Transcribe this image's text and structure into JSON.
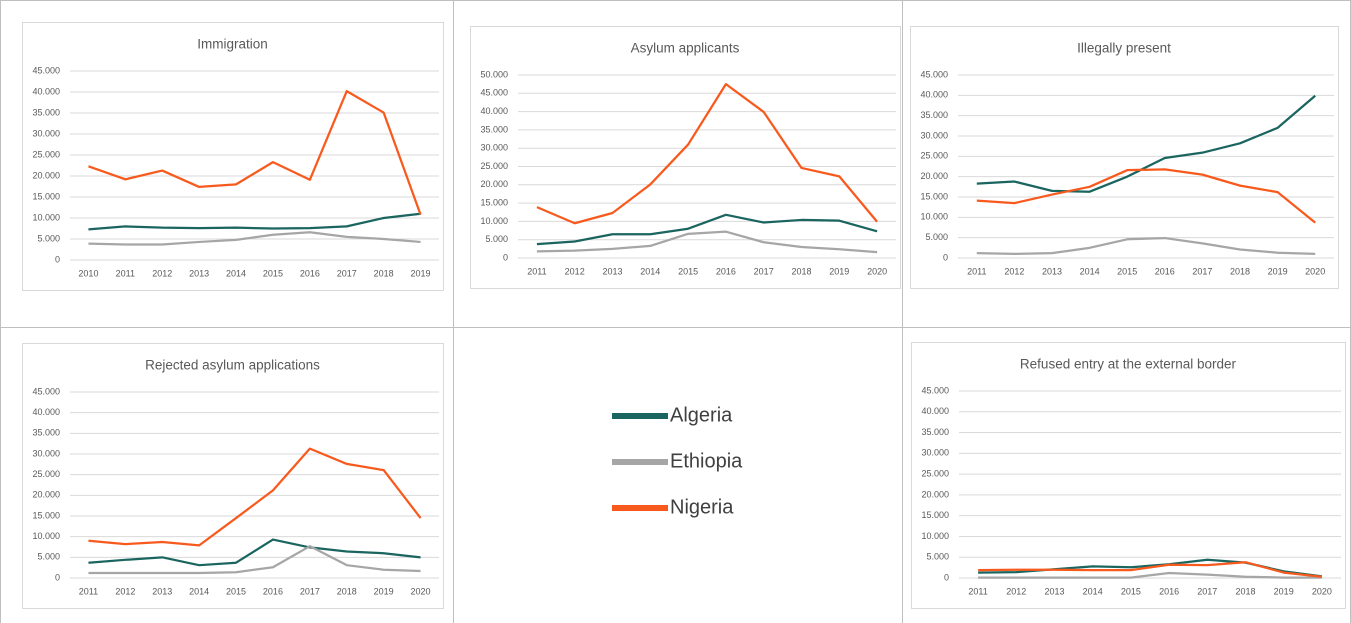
{
  "chart_data": [
    {
      "type": "line",
      "title": "Immigration",
      "categories": [
        "2010",
        "2011",
        "2012",
        "2013",
        "2014",
        "2015",
        "2016",
        "2017",
        "2018",
        "2019"
      ],
      "series": [
        {
          "name": "Algeria",
          "color": "#1a655f",
          "values": [
            7300,
            8000,
            7700,
            7600,
            7700,
            7500,
            7600,
            8000,
            10000,
            11000
          ]
        },
        {
          "name": "Ethiopia",
          "color": "#a6a6a6",
          "values": [
            3900,
            3700,
            3700,
            4300,
            4800,
            6000,
            6600,
            5500,
            5000,
            4300
          ]
        },
        {
          "name": "Nigeria",
          "color": "#f85a1e",
          "values": [
            22300,
            19200,
            21300,
            17400,
            18000,
            23300,
            19100,
            40200,
            35100,
            10800
          ]
        }
      ],
      "ylim": [
        0,
        45000
      ],
      "yticks": [
        0,
        {
          "value": 5000,
          "label": "5.000"
        },
        {
          "value": 10000,
          "label": "10.000"
        },
        {
          "value": 15000,
          "label": "15.000"
        },
        {
          "value": 20000,
          "label": "20.000"
        },
        {
          "value": 25000,
          "label": "25.000"
        },
        {
          "value": 30000,
          "label": "30.000"
        },
        {
          "value": 35000,
          "label": "35.000"
        },
        {
          "value": 40000,
          "label": "40.000"
        },
        {
          "value": 45000,
          "label": "45.000"
        }
      ],
      "grid": true
    },
    {
      "type": "line",
      "title": "Asylum applicants",
      "categories": [
        "2011",
        "2012",
        "2013",
        "2014",
        "2015",
        "2016",
        "2017",
        "2018",
        "2019",
        "2020"
      ],
      "series": [
        {
          "name": "Algeria",
          "color": "#1a655f",
          "values": [
            3800,
            4500,
            6500,
            6500,
            8000,
            11800,
            9700,
            10400,
            10200,
            7300
          ]
        },
        {
          "name": "Ethiopia",
          "color": "#a6a6a6",
          "values": [
            1800,
            2000,
            2500,
            3300,
            6600,
            7200,
            4300,
            3000,
            2400,
            1600
          ]
        },
        {
          "name": "Nigeria",
          "color": "#f85a1e",
          "values": [
            13900,
            9500,
            12300,
            20100,
            31000,
            47500,
            39900,
            24600,
            22300,
            9900
          ]
        }
      ],
      "ylim": [
        0,
        50000
      ],
      "yticks": [
        0,
        {
          "value": 5000,
          "label": "5.000"
        },
        {
          "value": 10000,
          "label": "10.000"
        },
        {
          "value": 15000,
          "label": "15.000"
        },
        {
          "value": 20000,
          "label": "20.000"
        },
        {
          "value": 25000,
          "label": "25.000"
        },
        {
          "value": 30000,
          "label": "30.000"
        },
        {
          "value": 35000,
          "label": "35.000"
        },
        {
          "value": 40000,
          "label": "40.000"
        },
        {
          "value": 45000,
          "label": "45.000"
        },
        {
          "value": 50000,
          "label": "50.000"
        }
      ],
      "grid": true
    },
    {
      "type": "line",
      "title": "Illegally present",
      "categories": [
        "2011",
        "2012",
        "2013",
        "2014",
        "2015",
        "2016",
        "2017",
        "2018",
        "2019",
        "2020"
      ],
      "series": [
        {
          "name": "Algeria",
          "color": "#1a655f",
          "values": [
            18300,
            18800,
            16500,
            16300,
            20000,
            24600,
            25900,
            28200,
            32000,
            39900
          ]
        },
        {
          "name": "Ethiopia",
          "color": "#a6a6a6",
          "values": [
            1200,
            1000,
            1200,
            2500,
            4600,
            4900,
            3600,
            2100,
            1300,
            1000
          ]
        },
        {
          "name": "Nigeria",
          "color": "#f85a1e",
          "values": [
            14100,
            13500,
            15600,
            17500,
            21600,
            21800,
            20500,
            17800,
            16200,
            8700
          ]
        }
      ],
      "ylim": [
        0,
        45000
      ],
      "yticks": [
        0,
        {
          "value": 5000,
          "label": "5.000"
        },
        {
          "value": 10000,
          "label": "10.000"
        },
        {
          "value": 15000,
          "label": "15.000"
        },
        {
          "value": 20000,
          "label": "20.000"
        },
        {
          "value": 25000,
          "label": "25.000"
        },
        {
          "value": 30000,
          "label": "30.000"
        },
        {
          "value": 35000,
          "label": "35.000"
        },
        {
          "value": 40000,
          "label": "40.000"
        },
        {
          "value": 45000,
          "label": "45.000"
        }
      ],
      "grid": true
    },
    {
      "type": "line",
      "title": "Rejected asylum applications",
      "categories": [
        "2011",
        "2012",
        "2013",
        "2014",
        "2015",
        "2016",
        "2017",
        "2018",
        "2019",
        "2020"
      ],
      "series": [
        {
          "name": "Algeria",
          "color": "#1a655f",
          "values": [
            3700,
            4400,
            5000,
            3100,
            3700,
            9300,
            7400,
            6400,
            6000,
            5000
          ]
        },
        {
          "name": "Ethiopia",
          "color": "#a6a6a6",
          "values": [
            1200,
            1200,
            1200,
            1200,
            1400,
            2600,
            7700,
            3100,
            2000,
            1700
          ]
        },
        {
          "name": "Nigeria",
          "color": "#f85a1e",
          "values": [
            9000,
            8200,
            8700,
            7900,
            14500,
            21200,
            31300,
            27600,
            26100,
            14500
          ]
        }
      ],
      "ylim": [
        0,
        45000
      ],
      "yticks": [
        0,
        {
          "value": 5000,
          "label": "5.000"
        },
        {
          "value": 10000,
          "label": "10.000"
        },
        {
          "value": 15000,
          "label": "15.000"
        },
        {
          "value": 20000,
          "label": "20.000"
        },
        {
          "value": 25000,
          "label": "25.000"
        },
        {
          "value": 30000,
          "label": "30.000"
        },
        {
          "value": 35000,
          "label": "35.000"
        },
        {
          "value": 40000,
          "label": "40.000"
        },
        {
          "value": 45000,
          "label": "45.000"
        }
      ],
      "grid": true
    },
    {
      "type": "line",
      "title": "Refused entry at the external border",
      "categories": [
        "2011",
        "2012",
        "2013",
        "2014",
        "2015",
        "2016",
        "2017",
        "2018",
        "2019",
        "2020"
      ],
      "series": [
        {
          "name": "Algeria",
          "color": "#1a655f",
          "values": [
            1300,
            1400,
            2100,
            2800,
            2600,
            3300,
            4400,
            3700,
            1600,
            400
          ]
        },
        {
          "name": "Ethiopia",
          "color": "#a6a6a6",
          "values": [
            100,
            100,
            100,
            100,
            100,
            1200,
            800,
            300,
            100,
            100
          ]
        },
        {
          "name": "Nigeria",
          "color": "#f85a1e",
          "values": [
            1900,
            2000,
            2000,
            1900,
            1900,
            3200,
            3100,
            3800,
            1300,
            300
          ]
        }
      ],
      "ylim": [
        0,
        45000
      ],
      "yticks": [
        0,
        {
          "value": 5000,
          "label": "5.000"
        },
        {
          "value": 10000,
          "label": "10.000"
        },
        {
          "value": 15000,
          "label": "15.000"
        },
        {
          "value": 20000,
          "label": "20.000"
        },
        {
          "value": 25000,
          "label": "25.000"
        },
        {
          "value": 30000,
          "label": "30.000"
        },
        {
          "value": 35000,
          "label": "35.000"
        },
        {
          "value": 40000,
          "label": "40.000"
        },
        {
          "value": 45000,
          "label": "45.000"
        }
      ],
      "grid": true
    }
  ]
}
